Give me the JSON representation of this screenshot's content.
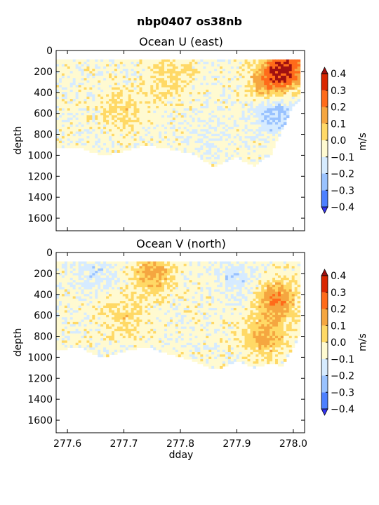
{
  "figure": {
    "suptitle": "nbp0407 os38nb"
  },
  "chart_data": [
    {
      "type": "heatmap",
      "title": "Ocean U (east)",
      "xlabel": "",
      "ylabel": "depth",
      "xlim": [
        277.58,
        278.02
      ],
      "ylim": [
        1720,
        0
      ],
      "y_inverted": true,
      "yticks": [
        0,
        200,
        400,
        600,
        800,
        1000,
        1200,
        1400,
        1600
      ],
      "ytick_labels": [
        "0",
        "200",
        "400",
        "600",
        "800",
        "1000",
        "1200",
        "1400",
        "1600"
      ],
      "xticks": [
        277.6,
        277.7,
        277.8,
        277.9,
        278.0
      ],
      "colorbar": {
        "label": "m/s",
        "levels": [
          -0.4,
          -0.3,
          -0.2,
          -0.1,
          0.0,
          0.1,
          0.2,
          0.3,
          0.4
        ],
        "tick_labels": [
          "−0.4",
          "−0.3",
          "−0.2",
          "−0.1",
          "0.0",
          "0.1",
          "0.2",
          "0.3",
          "0.4"
        ],
        "colors": [
          "#3333f2",
          "#4d80ff",
          "#99c2ff",
          "#d6ebff",
          "#fffad1",
          "#ffd966",
          "#f5a640",
          "#ff6b1a",
          "#d92600",
          "#a01010"
        ]
      },
      "data_coverage_top": 85,
      "data_bottom_profile": [
        [
          277.58,
          930
        ],
        [
          277.62,
          920
        ],
        [
          277.66,
          1000
        ],
        [
          277.7,
          960
        ],
        [
          277.74,
          900
        ],
        [
          277.78,
          940
        ],
        [
          277.82,
          980
        ],
        [
          277.86,
          1110
        ],
        [
          277.88,
          1060
        ],
        [
          277.9,
          1020
        ],
        [
          277.93,
          1100
        ],
        [
          277.96,
          990
        ],
        [
          277.98,
          760
        ],
        [
          278.0,
          520
        ],
        [
          278.01,
          480
        ]
      ],
      "features": [
        {
          "x": 277.99,
          "y": 150,
          "value": 0.35
        },
        {
          "x": 277.96,
          "y": 300,
          "value": 0.25
        },
        {
          "x": 277.97,
          "y": 600,
          "value": -0.2
        },
        {
          "x": 277.7,
          "y": 550,
          "value": 0.1
        },
        {
          "x": 277.78,
          "y": 250,
          "value": 0.1
        },
        {
          "x": 277.85,
          "y": 800,
          "value": -0.05
        }
      ]
    },
    {
      "type": "heatmap",
      "title": "Ocean V (north)",
      "xlabel": "dday",
      "ylabel": "depth",
      "xlim": [
        277.58,
        278.02
      ],
      "ylim": [
        1720,
        0
      ],
      "y_inverted": true,
      "yticks": [
        0,
        200,
        400,
        600,
        800,
        1000,
        1200,
        1400,
        1600
      ],
      "ytick_labels": [
        "0",
        "200",
        "400",
        "600",
        "800",
        "1000",
        "1200",
        "1400",
        "1600"
      ],
      "xticks": [
        277.6,
        277.7,
        277.8,
        277.9,
        278.0
      ],
      "xtick_labels": [
        "277.6",
        "277.7",
        "277.8",
        "277.9",
        "278.0"
      ],
      "colorbar": {
        "label": "m/s",
        "levels": [
          -0.4,
          -0.3,
          -0.2,
          -0.1,
          0.0,
          0.1,
          0.2,
          0.3,
          0.4
        ],
        "tick_labels": [
          "−0.4",
          "−0.3",
          "−0.2",
          "−0.1",
          "0.0",
          "0.1",
          "0.2",
          "0.3",
          "0.4"
        ],
        "colors": [
          "#3333f2",
          "#4d80ff",
          "#99c2ff",
          "#d6ebff",
          "#fffad1",
          "#ffd966",
          "#f5a640",
          "#ff6b1a",
          "#d92600",
          "#a01010"
        ]
      },
      "data_coverage_top": 85,
      "data_bottom_profile": [
        [
          277.58,
          930
        ],
        [
          277.62,
          900
        ],
        [
          277.66,
          1000
        ],
        [
          277.7,
          940
        ],
        [
          277.74,
          900
        ],
        [
          277.78,
          970
        ],
        [
          277.82,
          1030
        ],
        [
          277.86,
          1120
        ],
        [
          277.88,
          1080
        ],
        [
          277.9,
          1030
        ],
        [
          277.93,
          1100
        ],
        [
          277.96,
          1050
        ],
        [
          277.98,
          1080
        ],
        [
          278.0,
          900
        ],
        [
          278.01,
          800
        ]
      ],
      "features": [
        {
          "x": 277.75,
          "y": 180,
          "value": 0.2
        },
        {
          "x": 277.97,
          "y": 450,
          "value": 0.25
        },
        {
          "x": 277.95,
          "y": 800,
          "value": 0.2
        },
        {
          "x": 277.65,
          "y": 200,
          "value": -0.1
        },
        {
          "x": 277.9,
          "y": 250,
          "value": -0.1
        },
        {
          "x": 277.7,
          "y": 600,
          "value": 0.1
        }
      ]
    }
  ]
}
